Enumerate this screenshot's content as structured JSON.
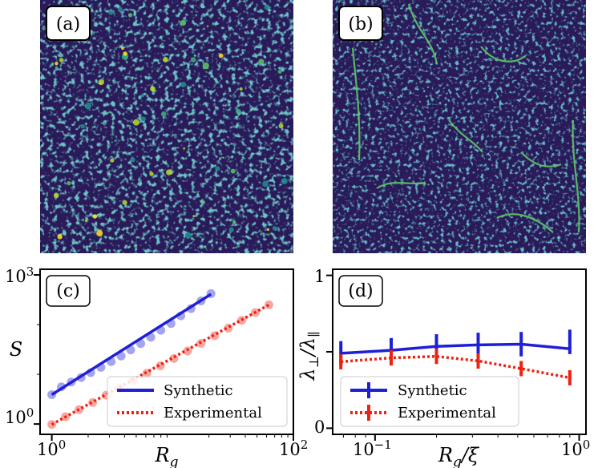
{
  "chart_data": [
    {
      "type": "heatmap",
      "panel": "(a)",
      "description_label": "(a)",
      "colormap": "viridis"
    },
    {
      "type": "heatmap",
      "panel": "(b)",
      "description_label": "(b)",
      "colormap": "viridis"
    },
    {
      "type": "scatter",
      "panel": "(c)",
      "xscale": "log",
      "yscale": "log",
      "xlim": [
        0.8,
        100
      ],
      "ylim": [
        0.62,
        1300
      ],
      "xticks": [
        1,
        100
      ],
      "xtick_labels": [
        "10^0",
        "10^2"
      ],
      "yticks": [
        1,
        1000
      ],
      "ytick_labels": [
        "10^0",
        "10^3"
      ],
      "xlabel": "R_g",
      "ylabel": "S",
      "legend_position": "lower-right",
      "series": [
        {
          "name": "Synthetic",
          "color": "#1f1fd6",
          "linestyle": "solid",
          "x": [
            1.0,
            1.2,
            1.45,
            1.75,
            2.1,
            2.55,
            3.1,
            3.75,
            4.5,
            5.45,
            6.6,
            8.0,
            9.7,
            11.7,
            14.2,
            17.2,
            20.8
          ],
          "y": [
            3.9,
            5.6,
            7.0,
            8.6,
            10.8,
            13.8,
            18.0,
            23.4,
            31.0,
            41.5,
            56.0,
            77.0,
            105.0,
            150.0,
            210.0,
            300.0,
            420.0
          ],
          "fit_x": [
            1.0,
            20.8
          ],
          "fit_y": [
            3.9,
            410.0
          ]
        },
        {
          "name": "Experimental",
          "color": "#ee2211",
          "linestyle": "dotted",
          "x": [
            1.0,
            1.3,
            1.68,
            2.18,
            2.82,
            3.65,
            4.73,
            6.12,
            7.92,
            10.25,
            13.3,
            17.2,
            22.3,
            28.9,
            37.4,
            48.4,
            62.7
          ],
          "y": [
            0.98,
            1.4,
            1.95,
            2.7,
            3.8,
            5.3,
            7.5,
            10.5,
            14.8,
            20.8,
            29.5,
            42.0,
            60.0,
            85.0,
            122.0,
            175.0,
            250.0
          ],
          "fit_x": [
            1.0,
            62.7
          ],
          "fit_y": [
            0.98,
            250.0
          ]
        }
      ]
    },
    {
      "type": "line",
      "panel": "(d)",
      "xscale": "log",
      "yscale": "linear",
      "xlim": [
        0.062,
        1.08
      ],
      "ylim": [
        -0.04,
        1.04
      ],
      "xticks": [
        0.1,
        1
      ],
      "xtick_labels": [
        "10^-1",
        "10^0"
      ],
      "yticks": [
        0,
        0.5,
        1
      ],
      "ytick_labels": [
        "0",
        "",
        "1"
      ],
      "xlabel": "R_g/ξ",
      "ylabel": "λ⊥/λ∥",
      "legend_position": "lower-left",
      "series": [
        {
          "name": "Synthetic",
          "color": "#1f1fd6",
          "linestyle": "solid",
          "x": [
            0.068,
            0.12,
            0.2,
            0.32,
            0.52,
            0.9,
            0.9
          ],
          "y": [
            0.49,
            0.51,
            0.535,
            0.545,
            0.55,
            0.52,
            0.565
          ],
          "yerr": [
            0.08,
            0.08,
            0.08,
            0.08,
            0.08,
            0.08,
            0.08
          ]
        },
        {
          "name": "Experimental",
          "color": "#ee2211",
          "linestyle": "dotted",
          "x": [
            0.068,
            0.12,
            0.2,
            0.32,
            0.52,
            0.9
          ],
          "y": [
            0.435,
            0.46,
            0.47,
            0.44,
            0.39,
            0.33
          ],
          "yerr": [
            0.05,
            0.05,
            0.05,
            0.05,
            0.05,
            0.05
          ]
        }
      ]
    }
  ]
}
